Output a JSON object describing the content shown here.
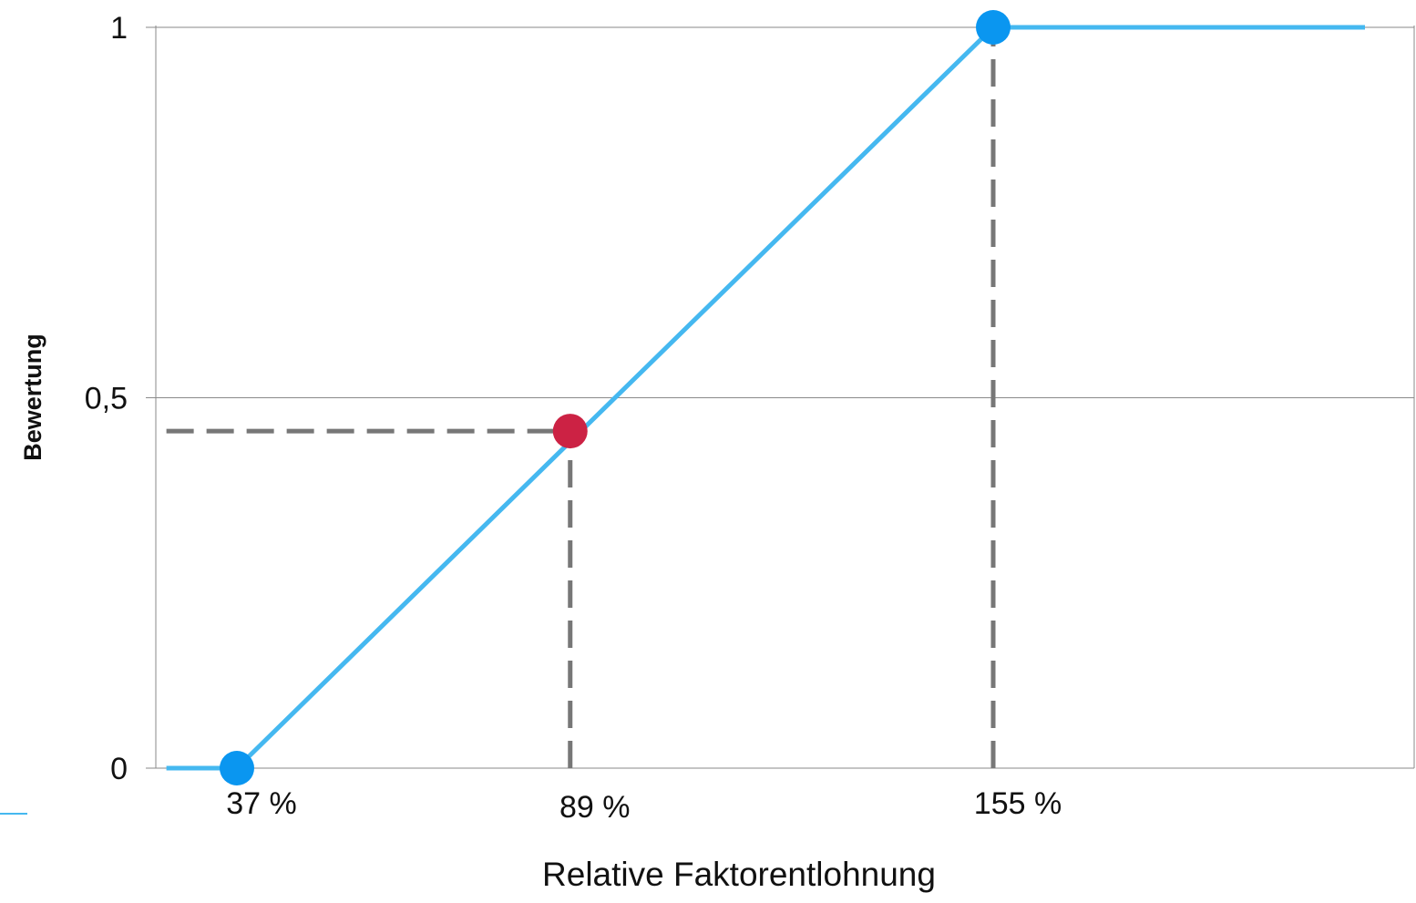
{
  "chart_data": {
    "type": "line",
    "xlabel": "Relative Faktorentlohnung",
    "ylabel": "Bewertung",
    "ylim": [
      0,
      1
    ],
    "yticks": [
      {
        "value": 0,
        "label": "0"
      },
      {
        "value": 0.5,
        "label": "0,5"
      },
      {
        "value": 1,
        "label": "1"
      }
    ],
    "xticks": [
      {
        "value": 37,
        "label": "37 %"
      },
      {
        "value": 89,
        "label": "89 %"
      },
      {
        "value": 155,
        "label": "155 %"
      }
    ],
    "series": [
      {
        "color": "#45b8f0",
        "points": [
          [
            26,
            0
          ],
          [
            37,
            0
          ],
          [
            155,
            1
          ],
          [
            213,
            1
          ]
        ]
      }
    ],
    "markers": [
      {
        "x": 37,
        "y": 0,
        "color": "#0a96f0"
      },
      {
        "x": 155,
        "y": 1,
        "color": "#0a96f0"
      },
      {
        "x": 89,
        "y": 0.455,
        "color": "#cc2244"
      }
    ],
    "guide_lines": [
      {
        "from": [
          89,
          0
        ],
        "to": [
          89,
          0.455
        ]
      },
      {
        "from": [
          26,
          0.455
        ],
        "to": [
          89,
          0.455
        ]
      },
      {
        "from": [
          155,
          0
        ],
        "to": [
          155,
          1
        ]
      }
    ],
    "grid": true,
    "colors": {
      "line": "#45b8f0",
      "marker_anchor": "#0a96f0",
      "marker_highlight": "#cc2244",
      "guide": "#777777",
      "grid": "#8a8a8a"
    }
  }
}
